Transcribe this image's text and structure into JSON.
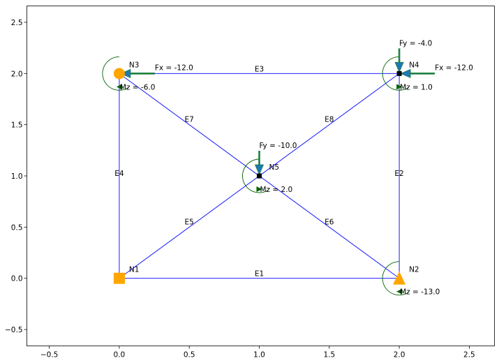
{
  "chart_data": {
    "type": "diagram",
    "title": "",
    "xlabel": "",
    "ylabel": "",
    "xlim": [
      -0.66,
      2.68
    ],
    "ylim": [
      -0.66,
      2.66
    ],
    "xticks": [
      -0.5,
      0.0,
      0.5,
      1.0,
      1.5,
      2.0,
      2.5
    ],
    "yticks": [
      -0.5,
      0.0,
      0.5,
      1.0,
      1.5,
      2.0,
      2.5
    ],
    "xtick_labels": [
      "−0.5",
      "0.0",
      "0.5",
      "1.0",
      "1.5",
      "2.0",
      "2.5"
    ],
    "ytick_labels": [
      "−0.5",
      "0.0",
      "0.5",
      "1.0",
      "1.5",
      "2.0",
      "2.5"
    ],
    "grid": false,
    "colors": {
      "element": "#0000ff",
      "support": "#ffa500",
      "force_arrow": "#1a7f3f",
      "force_head": "#1f77b4",
      "moment": "#006400",
      "node_marker": "#000000"
    },
    "nodes": [
      {
        "name": "N1",
        "x": 0.0,
        "y": 0.0,
        "support": "square"
      },
      {
        "name": "N2",
        "x": 2.0,
        "y": 0.0,
        "support": "triangle"
      },
      {
        "name": "N3",
        "x": 0.0,
        "y": 2.0,
        "support": "circle"
      },
      {
        "name": "N4",
        "x": 2.0,
        "y": 2.0,
        "support": "none"
      },
      {
        "name": "N5",
        "x": 1.0,
        "y": 1.0,
        "support": "none"
      }
    ],
    "elements": [
      {
        "name": "E1",
        "from": "N1",
        "to": "N2"
      },
      {
        "name": "E2",
        "from": "N2",
        "to": "N4"
      },
      {
        "name": "E3",
        "from": "N3",
        "to": "N4"
      },
      {
        "name": "E4",
        "from": "N1",
        "to": "N3"
      },
      {
        "name": "E5",
        "from": "N1",
        "to": "N5"
      },
      {
        "name": "E6",
        "from": "N5",
        "to": "N2"
      },
      {
        "name": "E7",
        "from": "N3",
        "to": "N5"
      },
      {
        "name": "E8",
        "from": "N5",
        "to": "N4"
      }
    ],
    "forces": [
      {
        "node": "N3",
        "dir": "x",
        "value": -12.0,
        "label": "Fx = -12.0"
      },
      {
        "node": "N4",
        "dir": "x",
        "value": -12.0,
        "label": "Fx = -12.0"
      },
      {
        "node": "N4",
        "dir": "y",
        "value": -4.0,
        "label": "Fy = -4.0"
      },
      {
        "node": "N5",
        "dir": "y",
        "value": -10.0,
        "label": "Fy = -10.0"
      }
    ],
    "moments": [
      {
        "node": "N2",
        "value": -13.0,
        "label": "Mz = -13.0"
      },
      {
        "node": "N3",
        "value": -6.0,
        "label": "Mz = -6.0"
      },
      {
        "node": "N4",
        "value": 1.0,
        "label": "Mz = 1.0"
      },
      {
        "node": "N5",
        "value": 2.0,
        "label": "Mz = 2.0"
      }
    ]
  }
}
